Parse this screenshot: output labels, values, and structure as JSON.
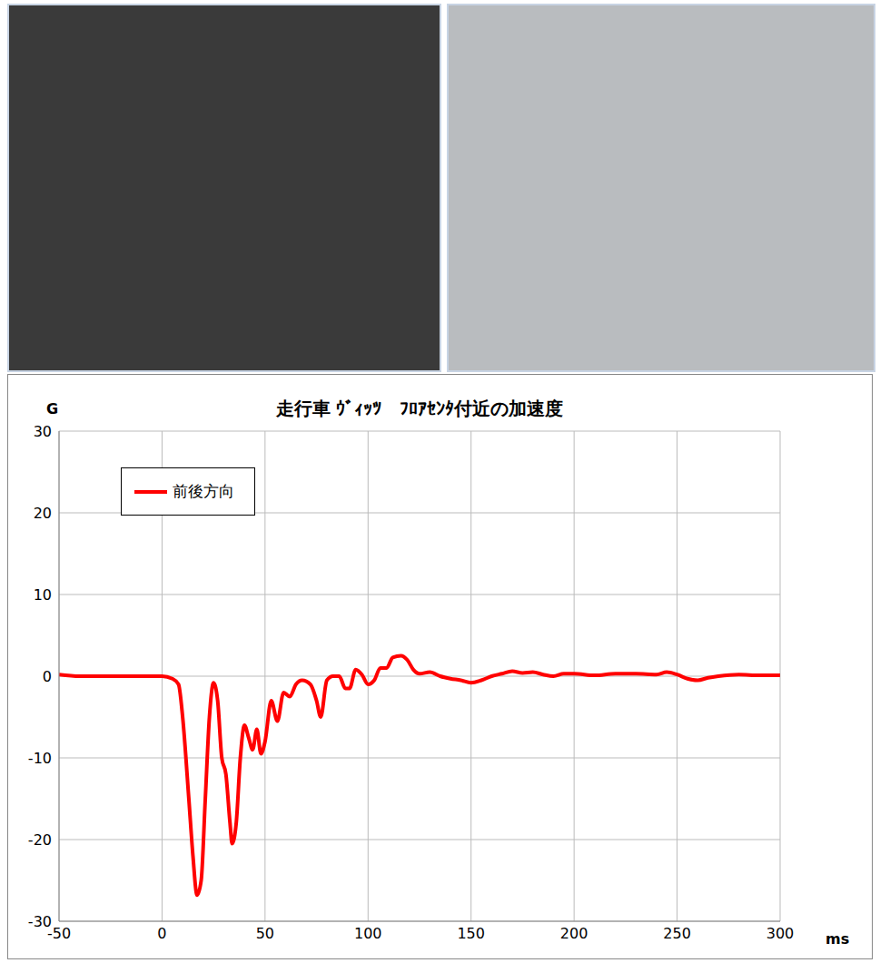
{
  "chart_data": {
    "type": "line",
    "title": "走行車 ｳﾞｨｯﾂ　ﾌﾛｱｾﾝﾀ付近の加速度",
    "y_label": "G",
    "x_label": "ms",
    "xlim": [
      -50,
      300
    ],
    "xticks": [
      -50,
      0,
      50,
      100,
      150,
      200,
      250,
      300
    ],
    "ylim": [
      -30,
      30
    ],
    "yticks": [
      -30,
      -20,
      -10,
      0,
      10,
      20,
      30
    ],
    "grid": true,
    "legend": "top-left",
    "series": [
      {
        "name": "前後方向",
        "color": "#ff0000",
        "x": [
          -50,
          -40,
          -30,
          -20,
          -10,
          0,
          5,
          8,
          10,
          13,
          15,
          17,
          19,
          21,
          23,
          25,
          27,
          29,
          31,
          33,
          34,
          36,
          38,
          40,
          42,
          44,
          46,
          48,
          50,
          53,
          56,
          59,
          62,
          65,
          68,
          72,
          75,
          77,
          80,
          83,
          86,
          89,
          91,
          94,
          97,
          100,
          103,
          106,
          109,
          112,
          116,
          119,
          122,
          125,
          130,
          135,
          140,
          145,
          150,
          155,
          160,
          165,
          170,
          175,
          180,
          185,
          190,
          195,
          200,
          210,
          220,
          230,
          240,
          245,
          250,
          255,
          260,
          265,
          270,
          280,
          290,
          300
        ],
        "values": [
          0.2,
          0,
          0,
          0,
          0,
          0,
          -0.3,
          -1,
          -5,
          -15,
          -22,
          -26.8,
          -25,
          -15,
          -5,
          -0.8,
          -3,
          -10,
          -12,
          -18,
          -20.5,
          -18,
          -10,
          -6,
          -7.5,
          -9,
          -6.5,
          -9.5,
          -8,
          -3,
          -5.5,
          -2,
          -2.5,
          -1,
          -0.5,
          -1,
          -3,
          -5,
          -0.5,
          0,
          0,
          -1.5,
          -1.5,
          0.8,
          0.2,
          -1,
          -0.5,
          1,
          1,
          2.3,
          2.5,
          2,
          0.8,
          0.3,
          0.5,
          0,
          -0.3,
          -0.5,
          -0.8,
          -0.5,
          0,
          0.3,
          0.6,
          0.4,
          0.5,
          0.2,
          0,
          0.3,
          0.3,
          0.1,
          0.3,
          0.3,
          0.2,
          0.5,
          0.2,
          -0.3,
          -0.5,
          -0.2,
          0,
          0.2,
          0.1,
          0.1
        ]
      }
    ]
  }
}
